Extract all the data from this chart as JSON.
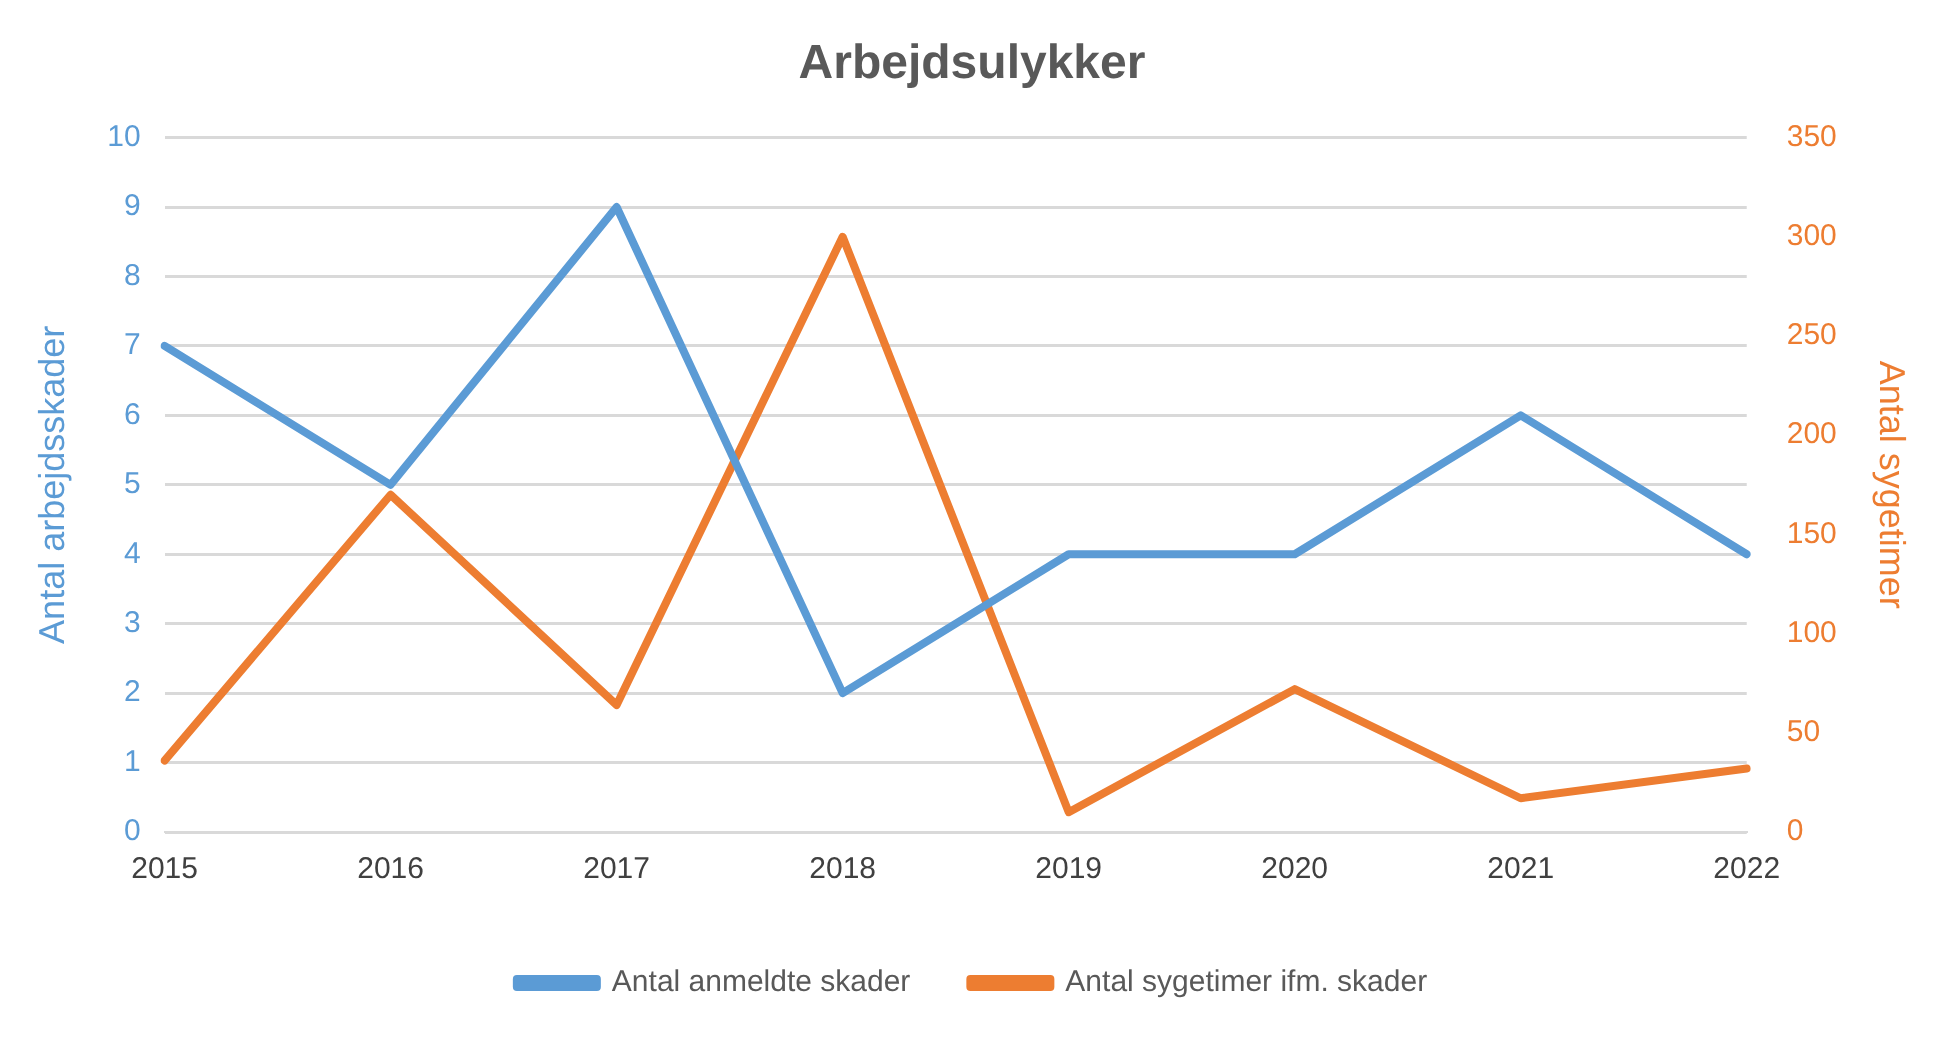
{
  "chart_data": {
    "type": "line",
    "title": "Arbejdsulykker",
    "ylabel": "Antal arbejdsskader",
    "y2label": "Antal sygetimer",
    "categories": [
      "2015",
      "2016",
      "2017",
      "2018",
      "2019",
      "2020",
      "2021",
      "2022"
    ],
    "series": [
      {
        "name": "Antal anmeldte skader",
        "color": "#5b9bd5",
        "values": [
          7,
          5,
          9,
          2,
          4,
          4,
          6,
          4
        ]
      },
      {
        "name": "Antal sygetimer ifm. skader",
        "color": "#ed7d31",
        "axis": "y2",
        "values": [
          36,
          170,
          64,
          300,
          10,
          72,
          17,
          32
        ]
      }
    ],
    "ylim": [
      0,
      10
    ],
    "yticks": [
      0,
      1,
      2,
      3,
      4,
      5,
      6,
      7,
      8,
      9,
      10
    ],
    "y2lim": [
      0,
      350
    ],
    "y2ticks": [
      0,
      50,
      100,
      150,
      200,
      250,
      300,
      350
    ],
    "grid": "y",
    "legend": "bottom",
    "marker": "none",
    "line_style": "solid"
  }
}
